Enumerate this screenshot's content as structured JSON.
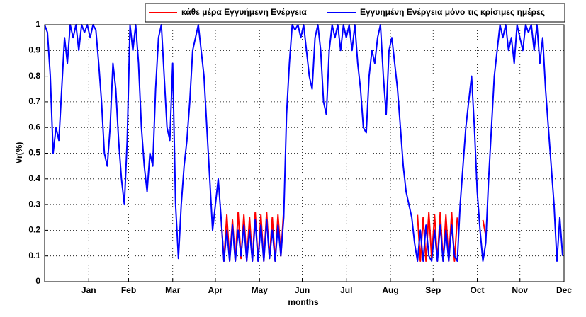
{
  "chart_data": {
    "type": "line",
    "xlabel": "months",
    "ylabel": "Vr(%)",
    "x": [
      0,
      2,
      4,
      6,
      8,
      10,
      12,
      14,
      16,
      18,
      20,
      22,
      24,
      26,
      28,
      30,
      32,
      34,
      36,
      38,
      40,
      42,
      44,
      46,
      48,
      50,
      52,
      54,
      56,
      58,
      60,
      62,
      64,
      66,
      68,
      70,
      72,
      74,
      76,
      78,
      80,
      82,
      84,
      86,
      88,
      90,
      92,
      94,
      96,
      98,
      100,
      102,
      104,
      106,
      108,
      110,
      112,
      114,
      116,
      118,
      120,
      122,
      124,
      126,
      128,
      130,
      132,
      134,
      136,
      138,
      140,
      142,
      144,
      146,
      148,
      150,
      152,
      154,
      156,
      158,
      160,
      162,
      164,
      166,
      168,
      170,
      172,
      174,
      176,
      178,
      180,
      182,
      184,
      186,
      188,
      190,
      192,
      194,
      196,
      198,
      200,
      202,
      204,
      206,
      208,
      210,
      212,
      214,
      216,
      218,
      220,
      222,
      224,
      226,
      228,
      230,
      232,
      234,
      236,
      238,
      240,
      242,
      244,
      246,
      248,
      250,
      252,
      254,
      256,
      258,
      260,
      262,
      264,
      266,
      268,
      270,
      272,
      274,
      276,
      278,
      280,
      282,
      284,
      286,
      288,
      290,
      292,
      294,
      296,
      298,
      300,
      302,
      304,
      306,
      308,
      310,
      312,
      314,
      316,
      318,
      320,
      322,
      324,
      326,
      328,
      330,
      332,
      334,
      336,
      338,
      340,
      342,
      344,
      346,
      348,
      350,
      352,
      354,
      356,
      358,
      360,
      362,
      364
    ],
    "series": [
      {
        "name": "κάθε μέρα Εγγυήμενη Ενέργεια",
        "color": "#ff0000",
        "values": [
          null,
          null,
          null,
          null,
          null,
          null,
          null,
          null,
          null,
          null,
          null,
          null,
          null,
          null,
          null,
          null,
          null,
          null,
          null,
          null,
          null,
          null,
          null,
          null,
          null,
          null,
          null,
          null,
          null,
          null,
          null,
          null,
          null,
          null,
          null,
          null,
          null,
          null,
          null,
          null,
          null,
          null,
          null,
          null,
          null,
          null,
          null,
          null,
          null,
          null,
          null,
          null,
          null,
          null,
          null,
          null,
          null,
          null,
          null,
          null,
          null,
          null,
          0.25,
          0.08,
          0.26,
          0.08,
          0.24,
          0.08,
          0.27,
          0.09,
          0.26,
          0.08,
          0.25,
          0.08,
          0.27,
          0.08,
          0.26,
          0.08,
          0.27,
          0.09,
          0.25,
          0.08,
          0.26,
          0.1,
          0.28,
          null,
          null,
          null,
          null,
          null,
          null,
          null,
          null,
          null,
          null,
          null,
          null,
          null,
          null,
          null,
          null,
          null,
          null,
          null,
          null,
          null,
          null,
          null,
          null,
          null,
          null,
          null,
          null,
          null,
          null,
          null,
          null,
          null,
          null,
          null,
          null,
          null,
          null,
          null,
          null,
          null,
          null,
          null,
          null,
          null,
          null,
          0.26,
          0.08,
          0.25,
          0.08,
          0.27,
          0.09,
          0.26,
          0.08,
          0.27,
          0.08,
          0.26,
          0.08,
          0.27,
          0.08,
          0.25,
          null,
          null,
          null,
          null,
          null,
          null,
          null,
          null,
          0.24,
          0.18,
          null,
          null,
          null,
          null,
          null,
          null,
          null,
          null,
          null,
          null,
          null,
          null,
          null,
          null,
          null,
          null,
          null,
          null,
          null,
          null,
          null,
          null,
          null,
          null,
          null,
          null,
          null
        ]
      },
      {
        "name": "Εγγυημένη Ενέργεια μόνο τις κρίσιμες ημέρες",
        "color": "#0000ff",
        "values": [
          1,
          0.97,
          0.8,
          0.5,
          0.6,
          0.55,
          0.75,
          0.95,
          0.85,
          1,
          0.95,
          1,
          0.9,
          1,
          0.97,
          1,
          0.95,
          1,
          0.98,
          0.85,
          0.7,
          0.5,
          0.45,
          0.6,
          0.85,
          0.75,
          0.55,
          0.4,
          0.3,
          0.55,
          1,
          0.9,
          1,
          0.85,
          0.6,
          0.45,
          0.35,
          0.5,
          0.45,
          0.75,
          0.95,
          1,
          0.8,
          0.6,
          0.55,
          0.85,
          0.3,
          0.09,
          0.3,
          0.45,
          0.55,
          0.7,
          0.9,
          0.95,
          1,
          0.9,
          0.8,
          0.6,
          0.4,
          0.2,
          0.3,
          0.4,
          0.25,
          0.08,
          0.2,
          0.08,
          0.22,
          0.08,
          0.2,
          0.1,
          0.22,
          0.08,
          0.2,
          0.08,
          0.24,
          0.08,
          0.22,
          0.08,
          0.24,
          0.09,
          0.2,
          0.08,
          0.22,
          0.1,
          0.25,
          0.65,
          0.85,
          1,
          0.98,
          1,
          0.95,
          1,
          0.9,
          0.8,
          0.75,
          0.95,
          1,
          0.9,
          0.7,
          0.65,
          0.9,
          1,
          0.95,
          1,
          0.9,
          1,
          0.95,
          1,
          0.9,
          1,
          0.85,
          0.75,
          0.6,
          0.58,
          0.8,
          0.9,
          0.85,
          0.95,
          1,
          0.8,
          0.65,
          0.9,
          0.95,
          0.85,
          0.75,
          0.6,
          0.45,
          0.35,
          0.3,
          0.25,
          0.15,
          0.08,
          0.2,
          0.08,
          0.22,
          0.1,
          0.08,
          0.2,
          0.08,
          0.22,
          0.08,
          0.2,
          0.08,
          0.22,
          0.1,
          0.08,
          0.3,
          0.45,
          0.6,
          0.7,
          0.8,
          0.6,
          0.35,
          0.2,
          0.08,
          0.15,
          0.4,
          0.6,
          0.8,
          0.9,
          1,
          0.95,
          1,
          0.9,
          0.95,
          0.85,
          1,
          0.95,
          0.9,
          1,
          0.97,
          1,
          0.9,
          1,
          0.85,
          0.95,
          0.75,
          0.6,
          0.45,
          0.3,
          0.08,
          0.25,
          0.1
        ]
      }
    ],
    "xlim": [
      0,
      365
    ],
    "xticks": [
      {
        "value": 31,
        "label": "Jan"
      },
      {
        "value": 59,
        "label": "Feb"
      },
      {
        "value": 90,
        "label": "Mar"
      },
      {
        "value": 120,
        "label": "Apr"
      },
      {
        "value": 151,
        "label": "May"
      },
      {
        "value": 181,
        "label": "Jun"
      },
      {
        "value": 212,
        "label": "Jul"
      },
      {
        "value": 243,
        "label": "Aug"
      },
      {
        "value": 273,
        "label": "Sep"
      },
      {
        "value": 304,
        "label": "Oct"
      },
      {
        "value": 334,
        "label": "Nov"
      },
      {
        "value": 365,
        "label": "Dec"
      }
    ],
    "ylim": [
      0,
      1
    ],
    "yticks": [
      0,
      0.1,
      0.2,
      0.3,
      0.4,
      0.5,
      0.6,
      0.7,
      0.8,
      0.9,
      1
    ],
    "grid": true,
    "legend": "top-right"
  }
}
